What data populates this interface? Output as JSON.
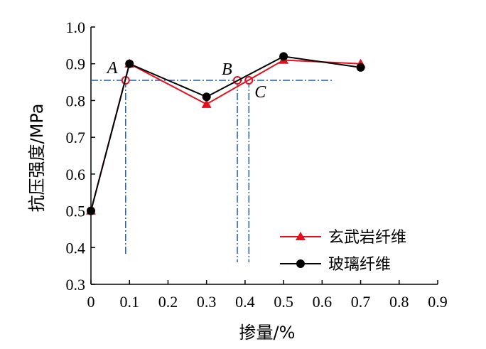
{
  "chart_data": {
    "type": "line",
    "xlabel": "掺量/%",
    "ylabel": "抗压强度/MPa",
    "xlim": [
      0,
      0.9
    ],
    "ylim": [
      0.3,
      1.0
    ],
    "x_ticks": [
      "0",
      "0.1",
      "0.2",
      "0.3",
      "0.4",
      "0.5",
      "0.6",
      "0.7",
      "0.8",
      "0.9"
    ],
    "y_ticks": [
      "0.3",
      "0.4",
      "0.5",
      "0.6",
      "0.7",
      "0.8",
      "0.9",
      "1.0"
    ],
    "grid": false,
    "legend_position": "bottom-right",
    "series": [
      {
        "name": "玄武岩纤维",
        "color": "#e3101e",
        "marker": "triangle",
        "x": [
          0,
          0.1,
          0.3,
          0.5,
          0.7
        ],
        "y": [
          0.5,
          0.9,
          0.79,
          0.91,
          0.9
        ]
      },
      {
        "name": "玻璃纤维",
        "color": "#000000",
        "marker": "circle",
        "x": [
          0,
          0.1,
          0.3,
          0.5,
          0.7
        ],
        "y": [
          0.5,
          0.9,
          0.81,
          0.92,
          0.89
        ]
      }
    ],
    "reference": {
      "color": "#1f5fa8",
      "y_value": 0.855,
      "line_x_end": 0.63,
      "bottom_y": 0.36,
      "points": [
        {
          "label": "A",
          "x": 0.09,
          "y": 0.855,
          "drop_to": 0.38
        },
        {
          "label": "B",
          "x": 0.38,
          "y": 0.855,
          "drop_to": 0.36
        },
        {
          "label": "C",
          "x": 0.41,
          "y": 0.855,
          "drop_to": 0.36
        }
      ]
    }
  }
}
